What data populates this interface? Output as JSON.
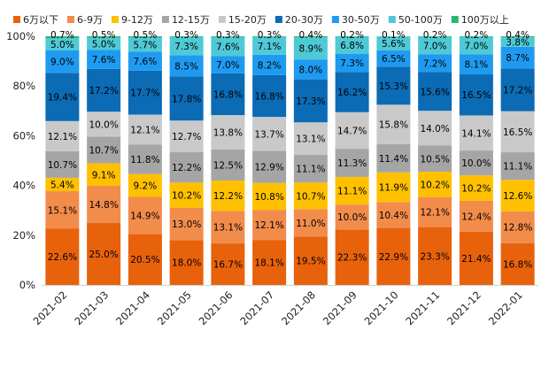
{
  "chart_data": {
    "type": "bar",
    "stacked": true,
    "percent": true,
    "title": "",
    "xlabel": "",
    "ylabel": "",
    "ylim": [
      0,
      100
    ],
    "y_ticks": [
      "0%",
      "20%",
      "40%",
      "60%",
      "80%",
      "100%"
    ],
    "legend_position": "top",
    "categories": [
      "2021-02",
      "2021-03",
      "2021-04",
      "2021-05",
      "2021-06",
      "2021-07",
      "2021-08",
      "2021-09",
      "2021-10",
      "2021-11",
      "2021-12",
      "2022-01"
    ],
    "series": [
      {
        "name": "6万以下",
        "color": "#E8620C",
        "label_color": "#000000",
        "values": [
          22.6,
          25.0,
          20.5,
          18.0,
          16.7,
          18.1,
          19.5,
          22.3,
          22.9,
          23.3,
          21.4,
          16.8
        ],
        "labels": [
          "22.6%",
          "25.0%",
          "20.5%",
          "18.0%",
          "16.7%",
          "18.1%",
          "19.5%",
          "22.3%",
          "22.9%",
          "23.3%",
          "21.4%",
          "16.8%"
        ]
      },
      {
        "name": "6-9万",
        "color": "#F28C4B",
        "label_color": "#000000",
        "values": [
          15.1,
          14.8,
          14.9,
          13.0,
          13.1,
          12.1,
          11.0,
          10.0,
          10.4,
          12.1,
          12.4,
          12.8
        ],
        "labels": [
          "15.1%",
          "14.8%",
          "14.9%",
          "13.0%",
          "13.1%",
          "12.1%",
          "11.0%",
          "10.0%",
          "10.4%",
          "12.1%",
          "12.4%",
          "12.8%"
        ]
      },
      {
        "name": "9-12万",
        "color": "#FFC000",
        "label_color": "#000000",
        "values": [
          5.4,
          9.1,
          9.2,
          10.2,
          12.2,
          10.8,
          10.7,
          11.1,
          11.9,
          10.2,
          10.2,
          12.6
        ],
        "labels": [
          "5.4%",
          "9.1%",
          "9.2%",
          "10.2%",
          "12.2%",
          "10.8%",
          "10.7%",
          "11.1%",
          "11.9%",
          "10.2%",
          "10.2%",
          "12.6%"
        ]
      },
      {
        "name": "12-15万",
        "color": "#A5A5A5",
        "label_color": "#000000",
        "values": [
          10.7,
          10.7,
          11.8,
          12.2,
          12.5,
          12.9,
          11.1,
          11.3,
          11.4,
          10.5,
          10.0,
          11.1
        ],
        "labels": [
          "10.7%",
          "10.7%",
          "11.8%",
          "12.2%",
          "12.5%",
          "12.9%",
          "11.1%",
          "11.3%",
          "11.4%",
          "10.5%",
          "10.0%",
          "11.1%"
        ]
      },
      {
        "name": "15-20万",
        "color": "#C9C9C9",
        "label_color": "#000000",
        "values": [
          12.1,
          10.0,
          12.1,
          12.7,
          13.8,
          13.7,
          13.1,
          14.7,
          15.8,
          14.0,
          14.1,
          16.5
        ],
        "labels": [
          "12.1%",
          "10.0%",
          "12.1%",
          "12.7%",
          "13.8%",
          "13.7%",
          "13.1%",
          "14.7%",
          "15.8%",
          "14.0%",
          "14.1%",
          "16.5%"
        ]
      },
      {
        "name": "20-30万",
        "color": "#0B6BB5",
        "label_color": "#000000",
        "values": [
          19.4,
          17.2,
          17.7,
          17.8,
          16.8,
          16.8,
          17.3,
          16.2,
          15.3,
          15.6,
          16.5,
          17.2
        ],
        "labels": [
          "19.4%",
          "17.2%",
          "17.7%",
          "17.8%",
          "16.8%",
          "16.8%",
          "17.3%",
          "16.2%",
          "15.3%",
          "15.6%",
          "16.5%",
          "17.2%"
        ]
      },
      {
        "name": "30-50万",
        "color": "#1E9BF0",
        "label_color": "#000000",
        "values": [
          9.0,
          7.6,
          7.6,
          8.5,
          7.0,
          8.2,
          8.0,
          7.3,
          6.5,
          7.2,
          8.1,
          8.7
        ],
        "labels": [
          "9.0%",
          "7.6%",
          "7.6%",
          "8.5%",
          "7.0%",
          "8.2%",
          "8.0%",
          "7.3%",
          "6.5%",
          "7.2%",
          "8.1%",
          "8.7%"
        ]
      },
      {
        "name": "50-100万",
        "color": "#4FC9D6",
        "label_color": "#000000",
        "values": [
          5.0,
          5.0,
          5.7,
          7.3,
          7.6,
          7.1,
          8.9,
          6.8,
          5.6,
          7.0,
          7.0,
          3.8
        ],
        "labels": [
          "5.0%",
          "5.0%",
          "5.7%",
          "7.3%",
          "7.6%",
          "7.1%",
          "8.9%",
          "6.8%",
          "5.6%",
          "7.0%",
          "7.0%",
          "3.8%"
        ]
      },
      {
        "name": "100万以上",
        "color": "#2BB673",
        "label_color": "#000000",
        "values": [
          0.7,
          0.5,
          0.5,
          0.3,
          0.3,
          0.3,
          0.4,
          0.2,
          0.1,
          0.2,
          0.2,
          0.4
        ],
        "labels": [
          "0.7%",
          "0.5%",
          "0.5%",
          "0.3%",
          "0.3%",
          "0.3%",
          "0.4%",
          "0.2%",
          "0.1%",
          "0.2%",
          "0.2%",
          "0.4%"
        ]
      }
    ]
  }
}
